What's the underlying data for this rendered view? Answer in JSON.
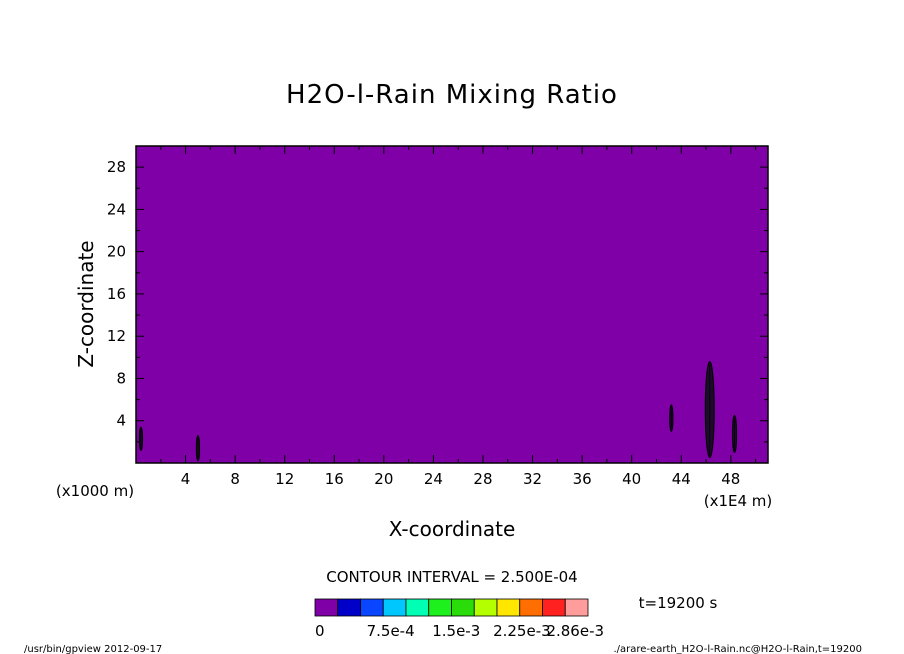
{
  "chart_data": {
    "type": "heatmap",
    "title": "H2O-l-Rain Mixing Ratio",
    "xlabel": "X-coordinate",
    "ylabel": "Z-coordinate",
    "x_scale_label": "(x1E4 m)",
    "y_scale_label": "(x1000 m)",
    "xlim": [
      0,
      51
    ],
    "ylim": [
      0,
      30
    ],
    "xticks": [
      4,
      8,
      12,
      16,
      20,
      24,
      28,
      32,
      36,
      40,
      44,
      48
    ],
    "yticks": [
      4,
      8,
      12,
      16,
      20,
      24,
      28
    ],
    "background_value": 0,
    "contour_interval_text": "CONTOUR INTERVAL = 2.500E-04",
    "time_text": "t=19200 s",
    "colorbar": {
      "colors": [
        "#7f00a7",
        "#0000c8",
        "#0a46ff",
        "#00c8ff",
        "#00ffb4",
        "#1ef01e",
        "#2adc0a",
        "#b4ff00",
        "#ffe600",
        "#ff6e00",
        "#ff2020",
        "#ff9c9c"
      ],
      "labels": [
        "0",
        "7.5e-4",
        "1.5e-3",
        "2.25e-3",
        "2.86e-3"
      ],
      "label_values": [
        0,
        0.00075,
        0.0015,
        0.00225,
        0.00286
      ],
      "vmax": 0.00286
    },
    "features": [
      {
        "x": 0.4,
        "z_min": 1.2,
        "z_max": 3.4
      },
      {
        "x": 5.0,
        "z_min": 0.2,
        "z_max": 2.6
      },
      {
        "x": 43.2,
        "z_min": 3.0,
        "z_max": 5.5
      },
      {
        "x": 46.3,
        "z_min": 0.5,
        "z_max": 9.6
      },
      {
        "x": 48.3,
        "z_min": 1.0,
        "z_max": 4.5
      }
    ]
  },
  "footer": {
    "left": "/usr/bin/gpview  2012-09-17",
    "right": "./arare-earth_H2O-l-Rain.nc@H2O-l-Rain,t=19200"
  }
}
